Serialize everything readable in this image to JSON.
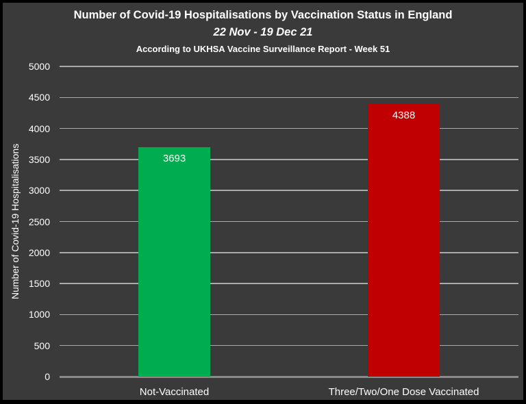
{
  "title": {
    "line1": "Number of Covid-19 Hospitalisations by Vaccination Status in England",
    "line2": "22 Nov - 19 Dec 21",
    "line3": "According to UKHSA Vaccine Surveillance Report - Week 51"
  },
  "chart_data": {
    "type": "bar",
    "categories": [
      "Not-Vaccinated",
      "Three/Two/One Dose Vaccinated"
    ],
    "values": [
      3693,
      4388
    ],
    "data_labels": [
      "3693",
      "4388"
    ],
    "bar_colors": [
      "#00AC50",
      "#C00000"
    ],
    "title": "Number of Covid-19 Hospitalisations by Vaccination Status in England",
    "subtitle": "22 Nov - 19 Dec 21",
    "source_note": "According to UKHSA Vaccine Surveillance Report - Week 51",
    "xlabel": "",
    "ylabel": "Number of Covid-19 Hospitalisations",
    "ylim": [
      0,
      5000
    ],
    "yticks": [
      0,
      500,
      1000,
      1500,
      2000,
      2500,
      3000,
      3500,
      4000,
      4500,
      5000
    ],
    "grid": true,
    "legend": "none",
    "colors": {
      "background": "#3A3A3A",
      "border": "#000000",
      "gridline": "#ABABAB",
      "axis_line": "#8A8A8A",
      "text": "#FFFFFF"
    }
  }
}
